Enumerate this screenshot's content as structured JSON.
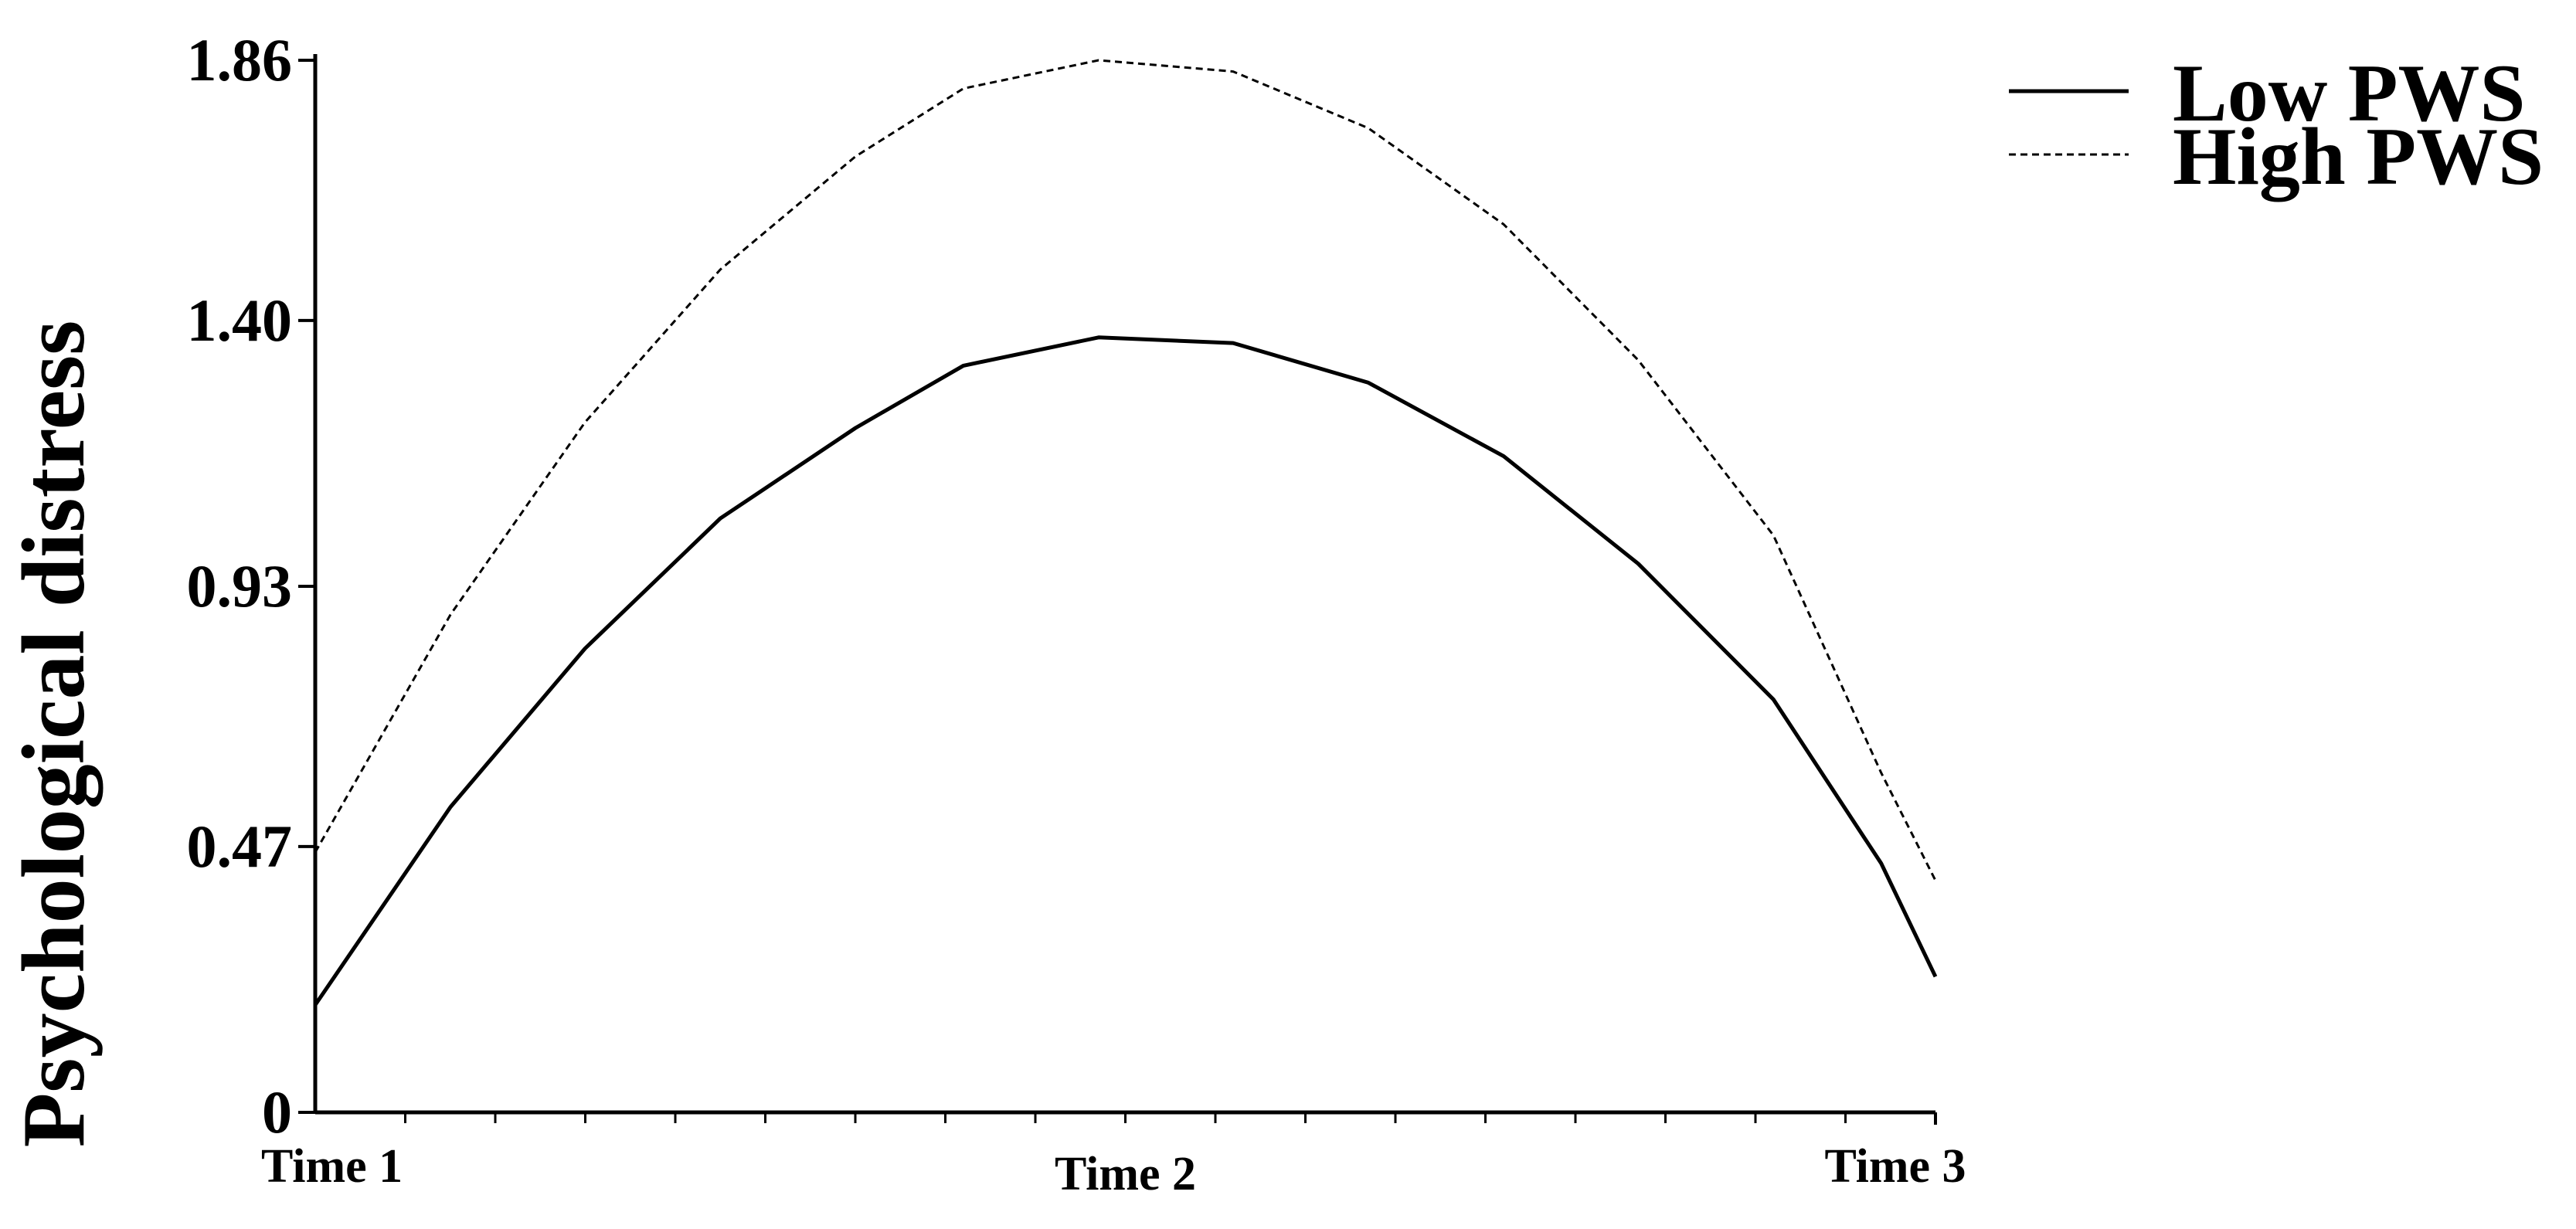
{
  "chart_data": {
    "type": "line",
    "title": "",
    "xlabel": "",
    "ylabel": "Psychological distress",
    "ylim": [
      0,
      1.86
    ],
    "yticks": [
      "0",
      "0.47",
      "0.93",
      "1.40",
      "1.86"
    ],
    "ytick_values": [
      0,
      0.47,
      0.93,
      1.4,
      1.86
    ],
    "categories": [
      "Time 1",
      "Time 2",
      "Time 3"
    ],
    "x_range": [
      1,
      3
    ],
    "grid": false,
    "legend_position": "top-right",
    "series": [
      {
        "name": "Low PWS",
        "style": "solid",
        "color": "#000000",
        "x": [
          1.0,
          1.167,
          1.333,
          1.5,
          1.667,
          1.8,
          1.967,
          2.133,
          2.3,
          2.467,
          2.633,
          2.8,
          2.933,
          3.0
        ],
        "values": [
          0.19,
          0.54,
          0.82,
          1.05,
          1.21,
          1.32,
          1.37,
          1.36,
          1.29,
          1.16,
          0.97,
          0.73,
          0.44,
          0.24
        ]
      },
      {
        "name": "High PWS",
        "style": "dashed",
        "color": "#000000",
        "x": [
          1.0,
          1.167,
          1.333,
          1.5,
          1.667,
          1.8,
          1.967,
          2.133,
          2.3,
          2.467,
          2.633,
          2.8,
          2.933,
          3.0
        ],
        "values": [
          0.46,
          0.88,
          1.22,
          1.49,
          1.69,
          1.81,
          1.86,
          1.84,
          1.74,
          1.57,
          1.33,
          1.02,
          0.6,
          0.41
        ]
      }
    ]
  }
}
